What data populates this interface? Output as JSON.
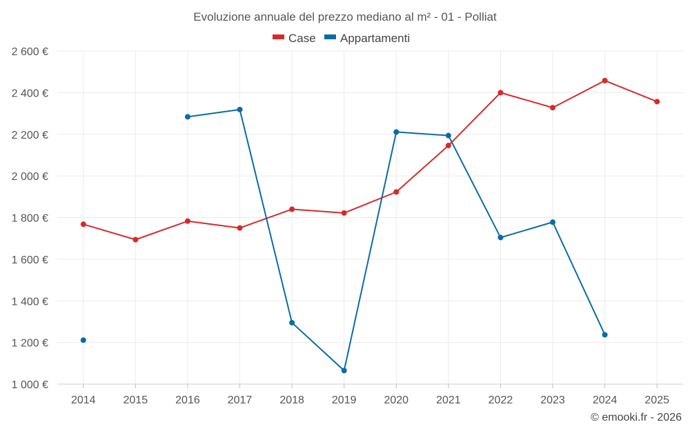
{
  "chart_data": {
    "type": "line",
    "title": "Evoluzione annuale del prezzo mediano al m² - 01 - Polliat",
    "categories": [
      "2014",
      "2015",
      "2016",
      "2017",
      "2018",
      "2019",
      "2020",
      "2021",
      "2022",
      "2023",
      "2024",
      "2025"
    ],
    "series": [
      {
        "name": "Case",
        "color": "#d62a2a",
        "values": [
          1768,
          1694,
          1783,
          1750,
          1840,
          1822,
          1923,
          2146,
          2400,
          2328,
          2458,
          2357
        ]
      },
      {
        "name": "Appartamenti",
        "color": "#0b6ba3",
        "values": [
          1211,
          null,
          2284,
          2319,
          1295,
          1065,
          2211,
          2194,
          1704,
          1778,
          1237,
          null
        ]
      }
    ],
    "ylim": [
      1000,
      2600
    ],
    "yticks": [
      1000,
      1200,
      1400,
      1600,
      1800,
      2000,
      2200,
      2400,
      2600
    ],
    "ytick_labels": [
      "1 000 €",
      "1 200 €",
      "1 400 €",
      "1 600 €",
      "1 800 €",
      "2 000 €",
      "2 200 €",
      "2 400 €",
      "2 600 €"
    ],
    "xlabel": "",
    "ylabel": "",
    "grid": true,
    "legend_position": "top-center"
  },
  "credit": "© emooki.fr - 2026"
}
